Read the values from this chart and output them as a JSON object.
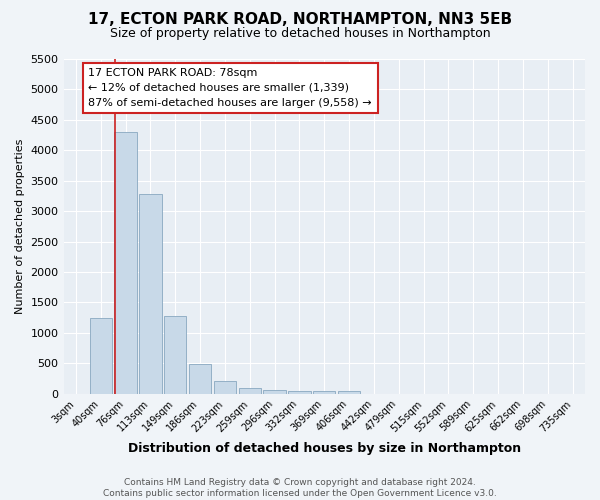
{
  "title": "17, ECTON PARK ROAD, NORTHAMPTON, NN3 5EB",
  "subtitle": "Size of property relative to detached houses in Northampton",
  "xlabel": "Distribution of detached houses by size in Northampton",
  "ylabel": "Number of detached properties",
  "footnote": "Contains HM Land Registry data © Crown copyright and database right 2024.\nContains public sector information licensed under the Open Government Licence v3.0.",
  "categories": [
    "3sqm",
    "40sqm",
    "76sqm",
    "113sqm",
    "149sqm",
    "186sqm",
    "223sqm",
    "259sqm",
    "296sqm",
    "332sqm",
    "369sqm",
    "406sqm",
    "442sqm",
    "479sqm",
    "515sqm",
    "552sqm",
    "589sqm",
    "625sqm",
    "662sqm",
    "698sqm",
    "735sqm"
  ],
  "bar_values": [
    0,
    1250,
    4300,
    3280,
    1280,
    490,
    215,
    90,
    65,
    50,
    50,
    50,
    0,
    0,
    0,
    0,
    0,
    0,
    0,
    0,
    0
  ],
  "bar_color": "#c8d9e8",
  "bar_edge_color": "#89a8c0",
  "marker_color": "#cc2222",
  "ylim_max": 5500,
  "yticks": [
    0,
    500,
    1000,
    1500,
    2000,
    2500,
    3000,
    3500,
    4000,
    4500,
    5000,
    5500
  ],
  "annotation_text": "17 ECTON PARK ROAD: 78sqm\n← 12% of detached houses are smaller (1,339)\n87% of semi-detached houses are larger (9,558) →",
  "bg_color": "#f0f4f8",
  "plot_bg_color": "#e8eef4",
  "grid_color": "#ffffff",
  "title_fontsize": 11,
  "subtitle_fontsize": 9,
  "annotation_fontsize": 8,
  "footnote_fontsize": 6.5,
  "ylabel_fontsize": 8,
  "xlabel_fontsize": 9
}
